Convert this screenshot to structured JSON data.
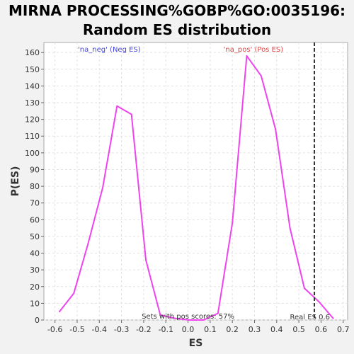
{
  "chart_data": {
    "type": "line",
    "title_lines": [
      "MIRNA PROCESSING%GOBP%GO:0035196:",
      "Random ES distribution"
    ],
    "xlabel": "ES",
    "ylabel": "P(ES)",
    "xlim": [
      -0.65,
      0.72
    ],
    "ylim": [
      0,
      166
    ],
    "x_ticks": [
      -0.6,
      -0.5,
      -0.4,
      -0.3,
      -0.2,
      -0.1,
      0.0,
      0.1,
      0.2,
      0.3,
      0.4,
      0.5,
      0.6,
      0.7
    ],
    "x_tick_labels": [
      "-0.6",
      "-0.5",
      "-0.4",
      "-0.3",
      "-0.2",
      "-0.1",
      "0.0",
      "0.1",
      "0.2",
      "0.3",
      "0.4",
      "0.5",
      "0.6",
      "0.7"
    ],
    "y_ticks": [
      0,
      10,
      20,
      30,
      40,
      50,
      60,
      70,
      80,
      90,
      100,
      110,
      120,
      130,
      140,
      150,
      160
    ],
    "y_tick_labels": [
      "0",
      "10",
      "20",
      "30",
      "40",
      "50",
      "60",
      "70",
      "80",
      "90",
      "100",
      "110",
      "120",
      "130",
      "140",
      "150",
      "160"
    ],
    "grid": true,
    "series": [
      {
        "color": "#ee44ee",
        "x": [
          -0.58,
          -0.515,
          -0.45,
          -0.385,
          -0.32,
          -0.255,
          -0.19,
          -0.125,
          -0.06,
          0.005,
          0.07,
          0.135,
          0.2,
          0.265,
          0.33,
          0.395,
          0.46,
          0.525,
          0.59,
          0.655
        ],
        "y": [
          5,
          16,
          46,
          79,
          128,
          123,
          36,
          3,
          1,
          0,
          0,
          4,
          58,
          158,
          146,
          114,
          55,
          19,
          11,
          1
        ]
      }
    ],
    "real_es": 0.57,
    "real_es_color": "#333333",
    "annotations": {
      "neg": {
        "text": "'na_neg' (Neg ES)",
        "color": "#4444dd"
      },
      "pos": {
        "text": "'na_pos' (Pos ES)",
        "color": "#dd4444"
      },
      "sets_pos": {
        "text": "Sets with pos scores: 57%",
        "color": "#333333"
      },
      "real_es_label": {
        "text": "Real ES 0.6",
        "color": "#333333"
      }
    }
  }
}
